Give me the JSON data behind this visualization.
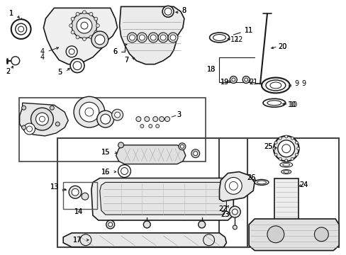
{
  "background_color": "#ffffff",
  "line_color": "#1a1a1a",
  "text_color": "#000000",
  "figure_width": 4.89,
  "figure_height": 3.6,
  "dpi": 100,
  "font_size": 7.0
}
